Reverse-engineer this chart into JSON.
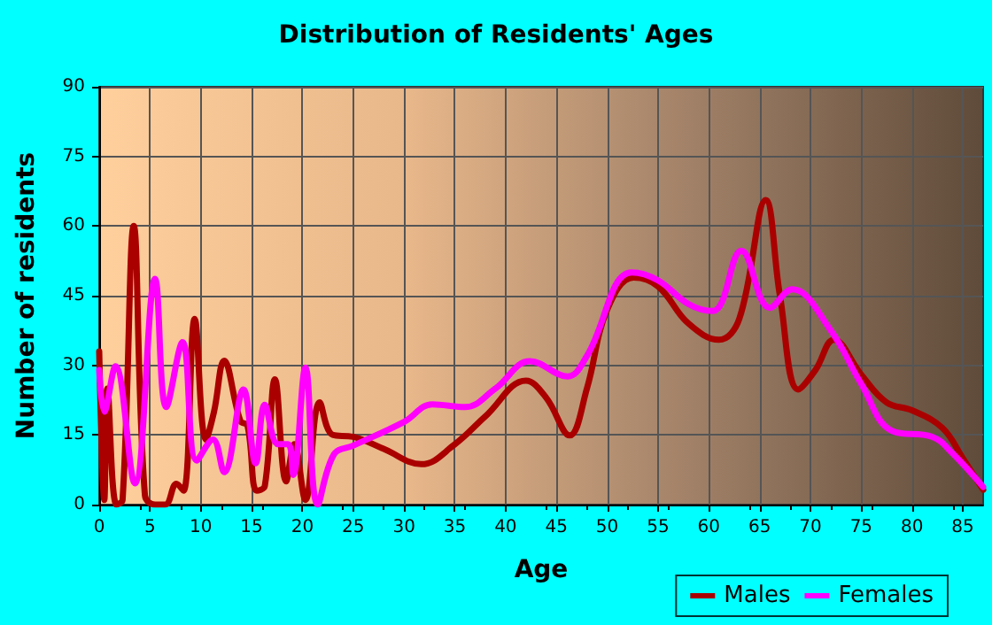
{
  "chart_data": {
    "type": "line",
    "title": "Distribution of Residents' Ages",
    "xlabel": "Age",
    "ylabel": "Number of residents",
    "xlim": [
      0,
      87
    ],
    "xticks": [
      0,
      5,
      10,
      15,
      20,
      25,
      30,
      35,
      40,
      45,
      50,
      55,
      60,
      65,
      70,
      75,
      80,
      85
    ],
    "ylim": [
      0,
      90
    ],
    "yticks": [
      0,
      15,
      30,
      45,
      60,
      75,
      90
    ],
    "grid": true,
    "legend": "bottom right",
    "marker": "none",
    "line_style": "solid",
    "series": [
      {
        "name": "Males",
        "color": "#aa0000",
        "x": [
          0,
          0.5,
          0.8,
          1.7,
          2.3,
          3.4,
          4.5,
          5.5,
          6.5,
          7.6,
          8.3,
          9.4,
          10.5,
          11.3,
          12.3,
          13.9,
          14.6,
          15.5,
          16.3,
          17.3,
          18.4,
          19.2,
          20.3,
          21.7,
          23,
          25,
          28,
          31.7,
          35,
          38,
          42,
          44,
          46.3,
          48,
          50,
          52.6,
          55,
          58,
          61,
          63,
          65.6,
          67,
          68.8,
          70.5,
          72.3,
          75,
          77.5,
          80,
          83,
          85,
          87
        ],
        "values": [
          33,
          1,
          25,
          0,
          1,
          60,
          2,
          0,
          0,
          4.5,
          3,
          40,
          14,
          20,
          31,
          18,
          17,
          3,
          4,
          27,
          5,
          13,
          1,
          22,
          15,
          14.6,
          12,
          8.7,
          13,
          19,
          26.7,
          23,
          14.9,
          25,
          42,
          48.9,
          47,
          39,
          35.5,
          40,
          65.6,
          45,
          24.8,
          29,
          35.5,
          28,
          22,
          20.3,
          16.5,
          10,
          3.2
        ]
      },
      {
        "name": "Females",
        "color": "#ff00ff",
        "x": [
          0,
          0.5,
          1.6,
          3.5,
          5.5,
          6.6,
          8.2,
          9.6,
          11.2,
          12.3,
          14.2,
          15.4,
          16.3,
          17.6,
          18.6,
          19.1,
          20.3,
          21.5,
          23.1,
          25,
          30,
          32.8,
          36,
          39,
          42.4,
          46.1,
          48,
          52.4,
          55,
          58,
          60.4,
          63.2,
          66,
          68.2,
          72,
          75,
          78,
          82,
          84,
          87
        ],
        "values": [
          29,
          20,
          29.8,
          4.6,
          48.6,
          21,
          35,
          9.5,
          14,
          7,
          24.8,
          8.9,
          21.5,
          13,
          13,
          6.4,
          29.5,
          0,
          10.8,
          12.7,
          17.8,
          21.6,
          21,
          25,
          30.9,
          27.6,
          32,
          50,
          48.3,
          43.2,
          41.7,
          54.7,
          42.4,
          46.4,
          37.5,
          26,
          15.9,
          14.6,
          11,
          3.8
        ]
      }
    ]
  }
}
